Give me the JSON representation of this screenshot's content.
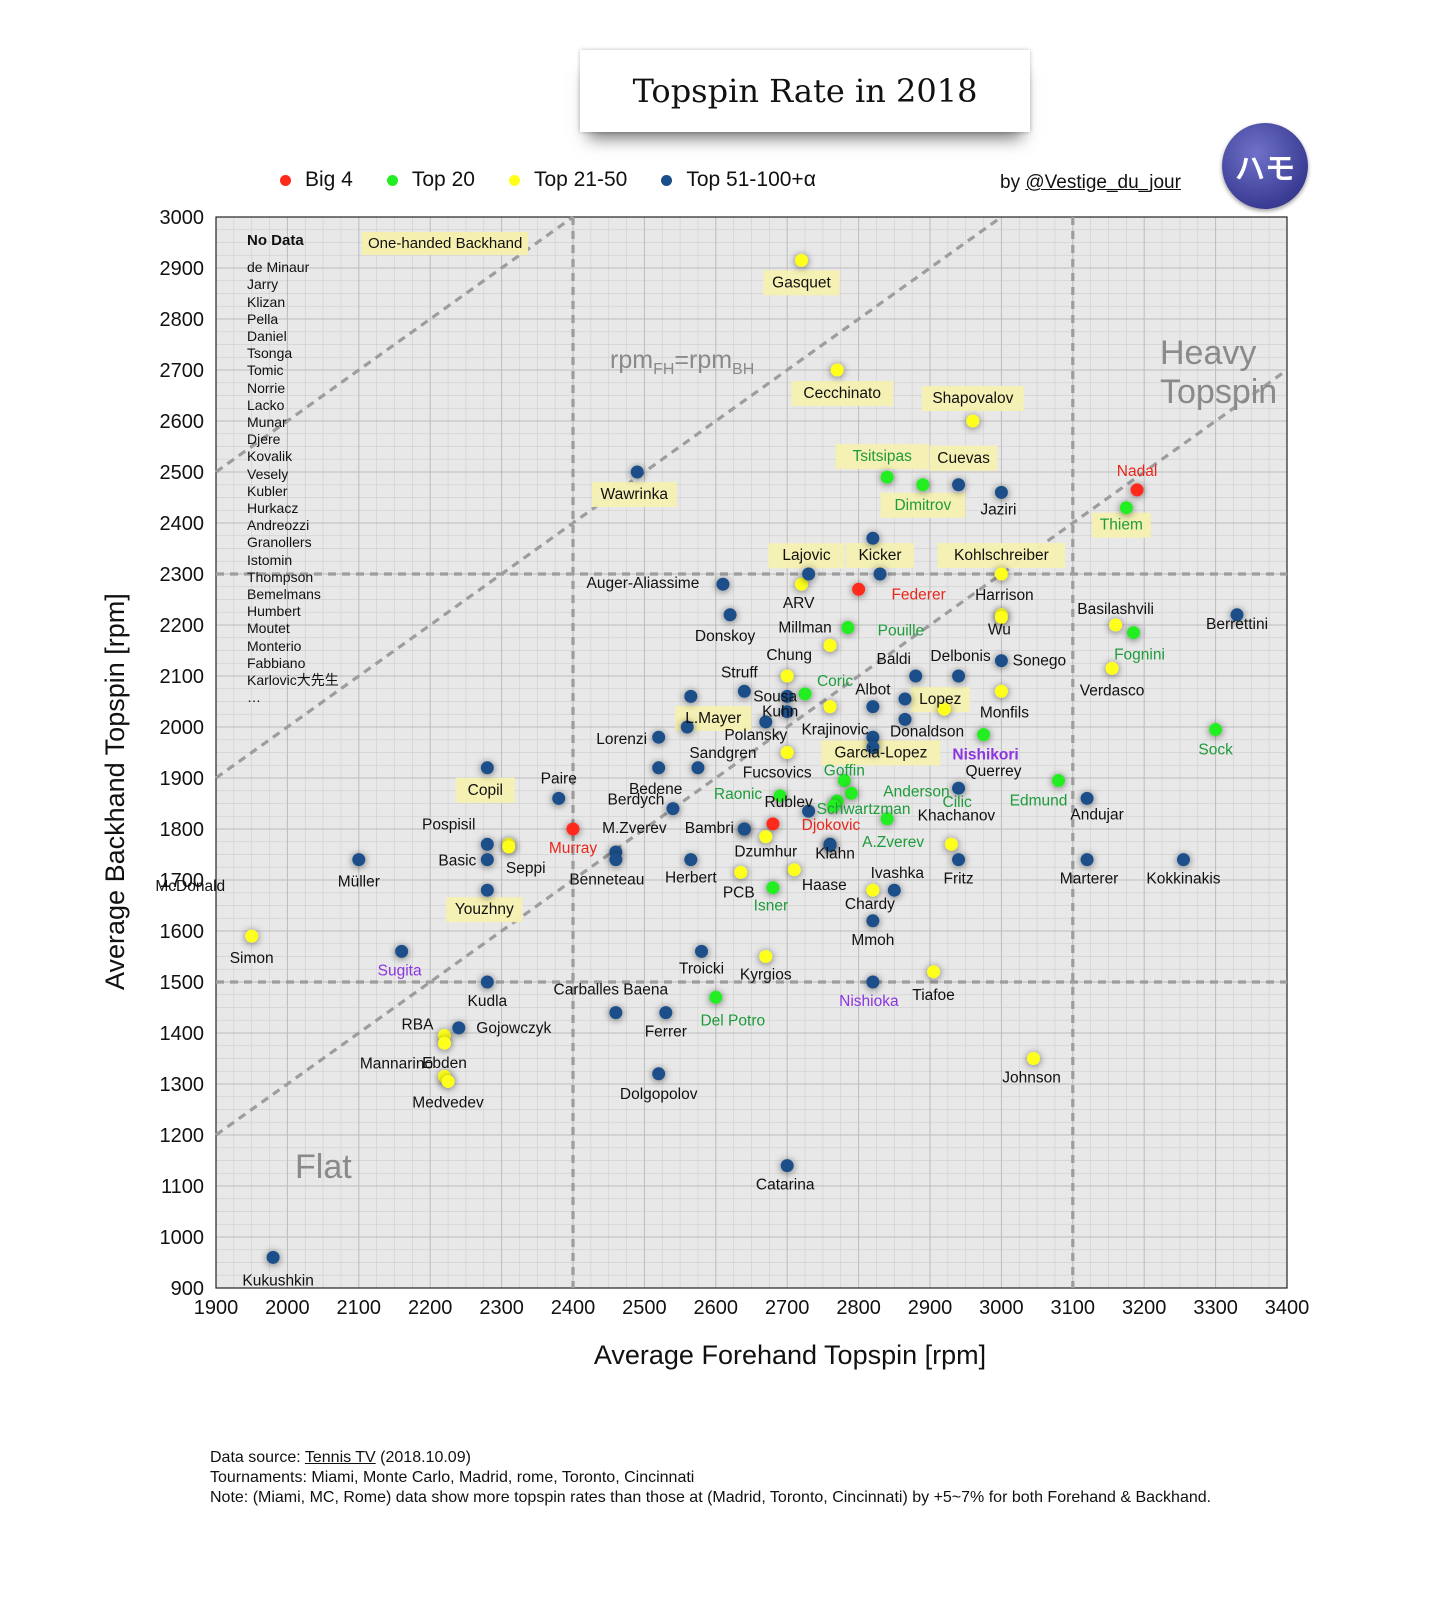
{
  "title": "Topspin Rate in 2018",
  "logo_text": "ハモ",
  "byline": {
    "prefix": "by ",
    "handle": "@Vestige_du_jour"
  },
  "legend": [
    {
      "label": "Big 4",
      "color": "#ff2a1a"
    },
    {
      "label": "Top 20",
      "color": "#22ee22"
    },
    {
      "label": "Top 21-50",
      "color": "#ffff1a"
    },
    {
      "label": "Top 51-100+α",
      "color": "#1a4f8a"
    }
  ],
  "zones": {
    "heavy": [
      "Heavy",
      "Topspin"
    ],
    "flat": "Flat"
  },
  "diag_label": {
    "base": "rpm",
    "sub1": "FH",
    "mid": "=rpm",
    "sub2": "BH"
  },
  "one_handed_label": "One-handed Backhand",
  "no_data": {
    "title": "No Data",
    "names": [
      "de Minaur",
      "Jarry",
      "Klizan",
      "Pella",
      "Daniel",
      "Tsonga",
      "Tomic",
      "Norrie",
      "Lacko",
      "Munar",
      "Djere",
      "Kovalik",
      "Vesely",
      "Kubler",
      "Hurkacz",
      "Andreozzi",
      "Granollers",
      "Istomin",
      "Thompson",
      "Bemelmans",
      "Humbert",
      "Moutet",
      "Monterio",
      "Fabbiano",
      "Karlovic大先生",
      "…"
    ]
  },
  "footer": {
    "source_prefix": "Data source: ",
    "source_link": "Tennis TV",
    "source_date": " (2018.10.09)",
    "tournaments": "Tournaments: Miami, Monte Carlo, Madrid, rome, Toronto, Cincinnati",
    "note": "Note: (Miami, MC, Rome) data show more topspin rates than those at (Madrid, Toronto, Cincinnati) by +5~7% for both Forehand & Backhand."
  },
  "chart_data": {
    "type": "scatter",
    "xlabel": "Average Forehand Topspin [rpm]",
    "ylabel": "Average Backhand Topspin [rpm]",
    "xlim": [
      1900,
      3400
    ],
    "ylim": [
      900,
      3000
    ],
    "xticks": [
      1900,
      2000,
      2100,
      2200,
      2300,
      2400,
      2500,
      2600,
      2700,
      2800,
      2900,
      3000,
      3100,
      3200,
      3300,
      3400
    ],
    "yticks": [
      900,
      1000,
      1100,
      1200,
      1300,
      1400,
      1500,
      1600,
      1700,
      1800,
      1900,
      2000,
      2100,
      2200,
      2300,
      2400,
      2500,
      2600,
      2700,
      2800,
      2900,
      3000
    ],
    "grid": true,
    "reference_lines": {
      "vertical_x": [
        2400,
        3100
      ],
      "horizontal_y": [
        1500,
        2300
      ],
      "diagonals": [
        "bh=fh+600",
        "bh=fh",
        "bh=fh-700"
      ]
    },
    "series_colors": {
      "big4": "#ff2a1a",
      "top20": "#22ee22",
      "top50": "#ffff1a",
      "top100": "#1a4f8a"
    },
    "label_colors": {
      "big4": "#e8261a",
      "top20": "#1e9b3a",
      "top50": "#111111",
      "top100": "#111111",
      "japan": "#8b35e0"
    },
    "points": [
      {
        "name": "Nadal",
        "x": 3190,
        "y": 2465,
        "g": "big4",
        "dx": 0,
        "dy": -14
      },
      {
        "name": "Federer",
        "x": 2800,
        "y": 2270,
        "g": "big4",
        "dx": 60,
        "dy": 10
      },
      {
        "name": "Djokovic",
        "x": 2680,
        "y": 1810,
        "g": "big4",
        "dx": 58,
        "dy": 6
      },
      {
        "name": "Murray",
        "x": 2400,
        "y": 1800,
        "g": "big4",
        "dx": 0,
        "dy": 24
      },
      {
        "name": "Thiem",
        "x": 3175,
        "y": 2430,
        "g": "top20",
        "dx": -5,
        "dy": 22,
        "hl": true
      },
      {
        "name": "Tsitsipas",
        "x": 2840,
        "y": 2490,
        "g": "top20",
        "dx": -5,
        "dy": -16,
        "hl": true
      },
      {
        "name": "Dimitrov",
        "x": 2890,
        "y": 2475,
        "g": "top20",
        "dx": 0,
        "dy": 25,
        "hl": true
      },
      {
        "name": "Pouille",
        "x": 2785,
        "y": 2195,
        "g": "top20",
        "dx": 53,
        "dy": 8
      },
      {
        "name": "Fognini",
        "x": 3185,
        "y": 2185,
        "g": "top20",
        "dx": 6,
        "dy": 27
      },
      {
        "name": "Coric",
        "x": 2725,
        "y": 2065,
        "g": "top20",
        "dx": 30,
        "dy": -8
      },
      {
        "name": "Sock",
        "x": 3300,
        "y": 1995,
        "g": "top20",
        "dx": 0,
        "dy": 25
      },
      {
        "name": "Nishikori",
        "x": 2975,
        "y": 1985,
        "g": "top20",
        "dx": 2,
        "dy": 25,
        "lc": "japan",
        "bold": true
      },
      {
        "name": "Goffin",
        "x": 2780,
        "y": 1895,
        "g": "top20",
        "dx": 0,
        "dy": -5
      },
      {
        "name": "Anderson",
        "x": 2790,
        "y": 1870,
        "g": "top20",
        "dx": 65,
        "dy": 3
      },
      {
        "name": "Raonic",
        "x": 2690,
        "y": 1865,
        "g": "top20",
        "dx": -42,
        "dy": 3
      },
      {
        "name": "Cilic",
        "x": 2770,
        "y": 1855,
        "g": "top20",
        "dx": 120,
        "dy": 6
      },
      {
        "name": "Schwartzman",
        "x": 2765,
        "y": 1845,
        "g": "top20",
        "dx": 30,
        "dy": 8
      },
      {
        "name": "A.Zverev",
        "x": 2840,
        "y": 1820,
        "g": "top20",
        "dx": 6,
        "dy": 28
      },
      {
        "name": "Edmund",
        "x": 3080,
        "y": 1895,
        "g": "top20",
        "dx": -20,
        "dy": 25
      },
      {
        "name": "Isner",
        "x": 2680,
        "y": 1685,
        "g": "top20",
        "dx": -2,
        "dy": 23
      },
      {
        "name": "Del Potro",
        "x": 2600,
        "y": 1470,
        "g": "top20",
        "dx": 17,
        "dy": 28
      },
      {
        "name": "Gasquet",
        "x": 2720,
        "y": 2915,
        "g": "top50",
        "dx": 0,
        "dy": 27,
        "hl": true
      },
      {
        "name": "Cecchinato",
        "x": 2770,
        "y": 2700,
        "g": "top50",
        "dx": 5,
        "dy": 28,
        "hl": true
      },
      {
        "name": "Shapovalov",
        "x": 2960,
        "y": 2600,
        "g": "top50",
        "dx": 0,
        "dy": -18,
        "hl": true
      },
      {
        "name": "Kohlschreiber",
        "x": 3000,
        "y": 2300,
        "g": "top50",
        "dx": 0,
        "dy": -14,
        "hl": true
      },
      {
        "name": "Lajovic",
        "x": 2720,
        "y": 2280,
        "g": "top50",
        "dx": 5,
        "dy": -24,
        "hl": true
      },
      {
        "name": "Harrison",
        "x": 3000,
        "y": 2220,
        "g": "top50",
        "dx": 3,
        "dy": -15
      },
      {
        "name": "Wu",
        "x": 3000,
        "y": 2215,
        "g": "top50",
        "dx": -2,
        "dy": 17
      },
      {
        "name": "Basilashvili",
        "x": 3160,
        "y": 2200,
        "g": "top50",
        "dx": 0,
        "dy": -11
      },
      {
        "name": "Verdasco",
        "x": 3155,
        "y": 2115,
        "g": "top50",
        "dx": 0,
        "dy": 27
      },
      {
        "name": "Millman",
        "x": 2760,
        "y": 2160,
        "g": "top50",
        "dx": -25,
        "dy": -13
      },
      {
        "name": "Chung",
        "x": 2700,
        "y": 2100,
        "g": "top50",
        "dx": 2,
        "dy": -16
      },
      {
        "name": "Monfils",
        "x": 3000,
        "y": 2070,
        "g": "top50",
        "dx": 3,
        "dy": 26
      },
      {
        "name": "Krajinovic",
        "x": 2760,
        "y": 2040,
        "g": "top50",
        "dx": 5,
        "dy": 28
      },
      {
        "name": "Lopez",
        "x": 2920,
        "y": 2035,
        "g": "top50",
        "dx": -4,
        "dy": -5,
        "hl": true
      },
      {
        "name": "Fucsovics",
        "x": 2700,
        "y": 1950,
        "g": "top50",
        "dx": -10,
        "dy": 25
      },
      {
        "name": "Pospisil",
        "x": 2310,
        "y": 1770,
        "g": "top50",
        "dx": -60,
        "dy": -15
      },
      {
        "name": "Seppi",
        "x": 2310,
        "y": 1765,
        "g": "top50",
        "dx": 17,
        "dy": 26
      },
      {
        "name": "Dzumhur",
        "x": 2670,
        "y": 1785,
        "g": "top50",
        "dx": 0,
        "dy": 20
      },
      {
        "name": "Khachanov",
        "x": 2930,
        "y": 1770,
        "g": "top50",
        "dx": 5,
        "dy": -24
      },
      {
        "name": "Haase",
        "x": 2710,
        "y": 1720,
        "g": "top50",
        "dx": 30,
        "dy": 20
      },
      {
        "name": "PCB",
        "x": 2635,
        "y": 1715,
        "g": "top50",
        "dx": -2,
        "dy": 25
      },
      {
        "name": "Chardy",
        "x": 2820,
        "y": 1680,
        "g": "top50",
        "dx": -3,
        "dy": 19
      },
      {
        "name": "Simon",
        "x": 1950,
        "y": 1590,
        "g": "top50",
        "dx": 0,
        "dy": 27
      },
      {
        "name": "Kyrgios",
        "x": 2670,
        "y": 1550,
        "g": "top50",
        "dx": 0,
        "dy": 23
      },
      {
        "name": "Tiafoe",
        "x": 2905,
        "y": 1520,
        "g": "top50",
        "dx": 0,
        "dy": 28
      },
      {
        "name": "Johnson",
        "x": 3045,
        "y": 1350,
        "g": "top50",
        "dx": -2,
        "dy": 24
      },
      {
        "name": "RBA",
        "x": 2220,
        "y": 1395,
        "g": "top50",
        "dx": -27,
        "dy": -6
      },
      {
        "name": "Ebden",
        "x": 2220,
        "y": 1380,
        "g": "top50",
        "dx": 0,
        "dy": 25
      },
      {
        "name": "Mannarino",
        "x": 2220,
        "y": 1315,
        "g": "top50",
        "dx": -48,
        "dy": -8
      },
      {
        "name": "Medvedev",
        "x": 2225,
        "y": 1305,
        "g": "top50",
        "dx": 0,
        "dy": 26
      },
      {
        "name": "Berrettini",
        "x": 3330,
        "y": 2220,
        "g": "top100",
        "dx": 0,
        "dy": 14
      },
      {
        "name": "Jaziri",
        "x": 3000,
        "y": 2460,
        "g": "top100",
        "dx": -3,
        "dy": 22
      },
      {
        "name": "Cuevas",
        "x": 2940,
        "y": 2475,
        "g": "top100",
        "dx": 5,
        "dy": -22,
        "hl": true
      },
      {
        "name": "",
        "x": 2820,
        "y": 2370,
        "g": "top100"
      },
      {
        "name": "Kicker",
        "x": 2830,
        "y": 2300,
        "g": "top100",
        "dx": 0,
        "dy": -14,
        "hl": true
      },
      {
        "name": "ARV",
        "x": 2730,
        "y": 2300,
        "g": "top100",
        "dx": -10,
        "dy": 34
      },
      {
        "name": "Wawrinka",
        "x": 2490,
        "y": 2500,
        "g": "top100",
        "dx": -3,
        "dy": 27,
        "hl": true
      },
      {
        "name": "Auger-Aliassime",
        "x": 2610,
        "y": 2280,
        "g": "top100",
        "dx": -80,
        "dy": 4
      },
      {
        "name": "Donskoy",
        "x": 2620,
        "y": 2220,
        "g": "top100",
        "dx": -5,
        "dy": 26
      },
      {
        "name": "Sonego",
        "x": 3000,
        "y": 2130,
        "g": "top100",
        "dx": 38,
        "dy": 5
      },
      {
        "name": "Delbonis",
        "x": 2940,
        "y": 2100,
        "g": "top100",
        "dx": 2,
        "dy": -15
      },
      {
        "name": "Baldi",
        "x": 2880,
        "y": 2100,
        "g": "top100",
        "dx": -22,
        "dy": -12
      },
      {
        "name": "Struff",
        "x": 2640,
        "y": 2070,
        "g": "top100",
        "dx": -5,
        "dy": -14
      },
      {
        "name": "Sousa",
        "x": 2700,
        "y": 2060,
        "g": "top100",
        "dx": -12,
        "dy": 5
      },
      {
        "name": "",
        "x": 2565,
        "y": 2060,
        "g": "top100"
      },
      {
        "name": "Albot",
        "x": 2820,
        "y": 2040,
        "g": "top100",
        "dx": 0,
        "dy": -12
      },
      {
        "name": "",
        "x": 2865,
        "y": 2055,
        "g": "top100"
      },
      {
        "name": "Kuhn",
        "x": 2700,
        "y": 2030,
        "g": "top100",
        "dx": -7,
        "dy": 5
      },
      {
        "name": "Polansky",
        "x": 2670,
        "y": 2010,
        "g": "top100",
        "dx": -10,
        "dy": 18
      },
      {
        "name": "Donaldson",
        "x": 2865,
        "y": 2015,
        "g": "top100",
        "dx": 22,
        "dy": 17
      },
      {
        "name": "L.Mayer",
        "x": 2560,
        "y": 2000,
        "g": "top100",
        "dx": 26,
        "dy": -4,
        "hl": true
      },
      {
        "name": "Lorenzi",
        "x": 2520,
        "y": 1980,
        "g": "top100",
        "dx": -37,
        "dy": 7
      },
      {
        "name": "",
        "x": 2820,
        "y": 1980,
        "g": "top100"
      },
      {
        "name": "Garcia-Lopez",
        "x": 2820,
        "y": 1960,
        "g": "top100",
        "dx": 8,
        "dy": 10,
        "hl": true
      },
      {
        "name": "Sandgren",
        "x": 2575,
        "y": 1920,
        "g": "top100",
        "dx": 25,
        "dy": -10
      },
      {
        "name": "Bedene",
        "x": 2520,
        "y": 1920,
        "g": "top100",
        "dx": -3,
        "dy": 26
      },
      {
        "name": "Copil",
        "x": 2280,
        "y": 1920,
        "g": "top100",
        "dx": -2,
        "dy": 27,
        "hl": true
      },
      {
        "name": "Querrey",
        "x": 2940,
        "y": 1880,
        "g": "top100",
        "dx": 35,
        "dy": -12
      },
      {
        "name": "Andujar",
        "x": 3120,
        "y": 1860,
        "g": "top100",
        "dx": 10,
        "dy": 21
      },
      {
        "name": "Paire",
        "x": 2380,
        "y": 1860,
        "g": "top100",
        "dx": 0,
        "dy": -15
      },
      {
        "name": "Berdych",
        "x": 2540,
        "y": 1840,
        "g": "top100",
        "dx": -37,
        "dy": -4
      },
      {
        "name": "Rublev",
        "x": 2730,
        "y": 1835,
        "g": "top100",
        "dx": -20,
        "dy": -4
      },
      {
        "name": "M.Zverev",
        "x": 2640,
        "y": 1800,
        "g": "top100",
        "dx": -110,
        "dy": 4
      },
      {
        "name": "Bambri",
        "x": 2640,
        "y": 1800,
        "g": "top100",
        "dx": -35,
        "dy": 4
      },
      {
        "name": "McDonald",
        "x": 1920,
        "y": 1745,
        "g": "top100",
        "dx": -40,
        "dy": 34,
        "nodot": true
      },
      {
        "name": "Müller",
        "x": 2100,
        "y": 1740,
        "g": "top100",
        "dx": 0,
        "dy": 27
      },
      {
        "name": "",
        "x": 2280,
        "y": 1770,
        "g": "top100"
      },
      {
        "name": "Basic",
        "x": 2280,
        "y": 1740,
        "g": "top100",
        "dx": -30,
        "dy": 6
      },
      {
        "name": "",
        "x": 2460,
        "y": 1755,
        "g": "top100"
      },
      {
        "name": "Benneteau",
        "x": 2460,
        "y": 1740,
        "g": "top100",
        "dx": -9,
        "dy": 25
      },
      {
        "name": "Herbert",
        "x": 2565,
        "y": 1740,
        "g": "top100",
        "dx": 0,
        "dy": 23
      },
      {
        "name": "",
        "x": 2760,
        "y": 1770,
        "g": "top100"
      },
      {
        "name": "Klahn",
        "x": 2760,
        "y": 1768,
        "g": "top100",
        "dx": 5,
        "dy": 13
      },
      {
        "name": "Fritz",
        "x": 2940,
        "y": 1740,
        "g": "top100",
        "dx": 0,
        "dy": 24
      },
      {
        "name": "Ivashka",
        "x": 2850,
        "y": 1680,
        "g": "top100",
        "dx": 3,
        "dy": -12
      },
      {
        "name": "Marterer",
        "x": 3120,
        "y": 1740,
        "g": "top100",
        "dx": 2,
        "dy": 24
      },
      {
        "name": "Kokkinakis",
        "x": 3255,
        "y": 1740,
        "g": "top100",
        "dx": 0,
        "dy": 24
      },
      {
        "name": "Youzhny",
        "x": 2280,
        "y": 1680,
        "g": "top100",
        "dx": -3,
        "dy": 24,
        "hl": true
      },
      {
        "name": "Mmoh",
        "x": 2820,
        "y": 1620,
        "g": "top100",
        "dx": 0,
        "dy": 24
      },
      {
        "name": "Sugita",
        "x": 2160,
        "y": 1560,
        "g": "top100",
        "dx": -2,
        "dy": 24,
        "lc": "japan"
      },
      {
        "name": "Troicki",
        "x": 2580,
        "y": 1560,
        "g": "top100",
        "dx": 0,
        "dy": 22
      },
      {
        "name": "Nishioka",
        "x": 2820,
        "y": 1500,
        "g": "top100",
        "dx": -4,
        "dy": 24,
        "lc": "japan"
      },
      {
        "name": "Kudla",
        "x": 2280,
        "y": 1500,
        "g": "top100",
        "dx": 0,
        "dy": 24
      },
      {
        "name": "Carballes Baena",
        "x": 2460,
        "y": 1440,
        "g": "top100",
        "dx": -5,
        "dy": -18
      },
      {
        "name": "Ferrer",
        "x": 2530,
        "y": 1440,
        "g": "top100",
        "dx": 0,
        "dy": 24
      },
      {
        "name": "Gojowczyk",
        "x": 2240,
        "y": 1410,
        "g": "top100",
        "dx": 55,
        "dy": 5
      },
      {
        "name": "Dolgopolov",
        "x": 2520,
        "y": 1320,
        "g": "top100",
        "dx": 0,
        "dy": 25
      },
      {
        "name": "Catarina",
        "x": 2700,
        "y": 1140,
        "g": "top100",
        "dx": -2,
        "dy": 24
      },
      {
        "name": "Kukushkin",
        "x": 1980,
        "y": 960,
        "g": "top100",
        "dx": 5,
        "dy": 28
      }
    ]
  }
}
